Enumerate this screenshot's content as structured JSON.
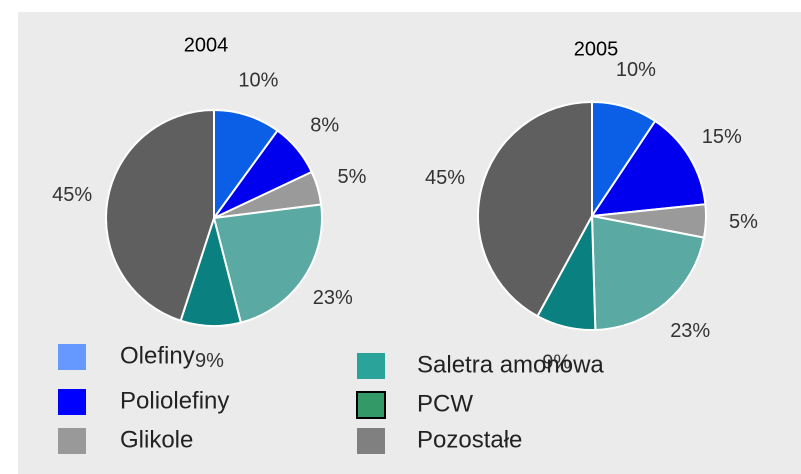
{
  "chart_data": [
    {
      "type": "pie",
      "title": "2004",
      "categories": [
        "Olefiny",
        "Poliolefiny",
        "Glikole",
        "Saletra amonowa",
        "PCW",
        "Pozostałe"
      ],
      "values": [
        10,
        8,
        5,
        23,
        9,
        45
      ],
      "value_labels": [
        "10%",
        "8%",
        "5%",
        "23%",
        "9%",
        "45%"
      ],
      "colors": [
        "#0b5fe6",
        "#0000ee",
        "#9a9a9a",
        "#5aa9a2",
        "#0b8080",
        "#5f5f5f"
      ],
      "legend_colors": [
        "#6699ff",
        "#0000ff",
        "#999999",
        "#2aa39a",
        "#339966",
        "#808080"
      ]
    },
    {
      "type": "pie",
      "title": "2005",
      "categories": [
        "Olefiny",
        "Poliolefiny",
        "Glikole",
        "Saletra amonowa",
        "PCW",
        "Pozostałe"
      ],
      "values": [
        10,
        15,
        5,
        23,
        9,
        45
      ],
      "value_labels": [
        "10%",
        "15%",
        "5%",
        "23%",
        "9%",
        "45%"
      ],
      "colors": [
        "#0b5fe6",
        "#0000ee",
        "#9a9a9a",
        "#5aa9a2",
        "#0b8080",
        "#5f5f5f"
      ]
    }
  ]
}
